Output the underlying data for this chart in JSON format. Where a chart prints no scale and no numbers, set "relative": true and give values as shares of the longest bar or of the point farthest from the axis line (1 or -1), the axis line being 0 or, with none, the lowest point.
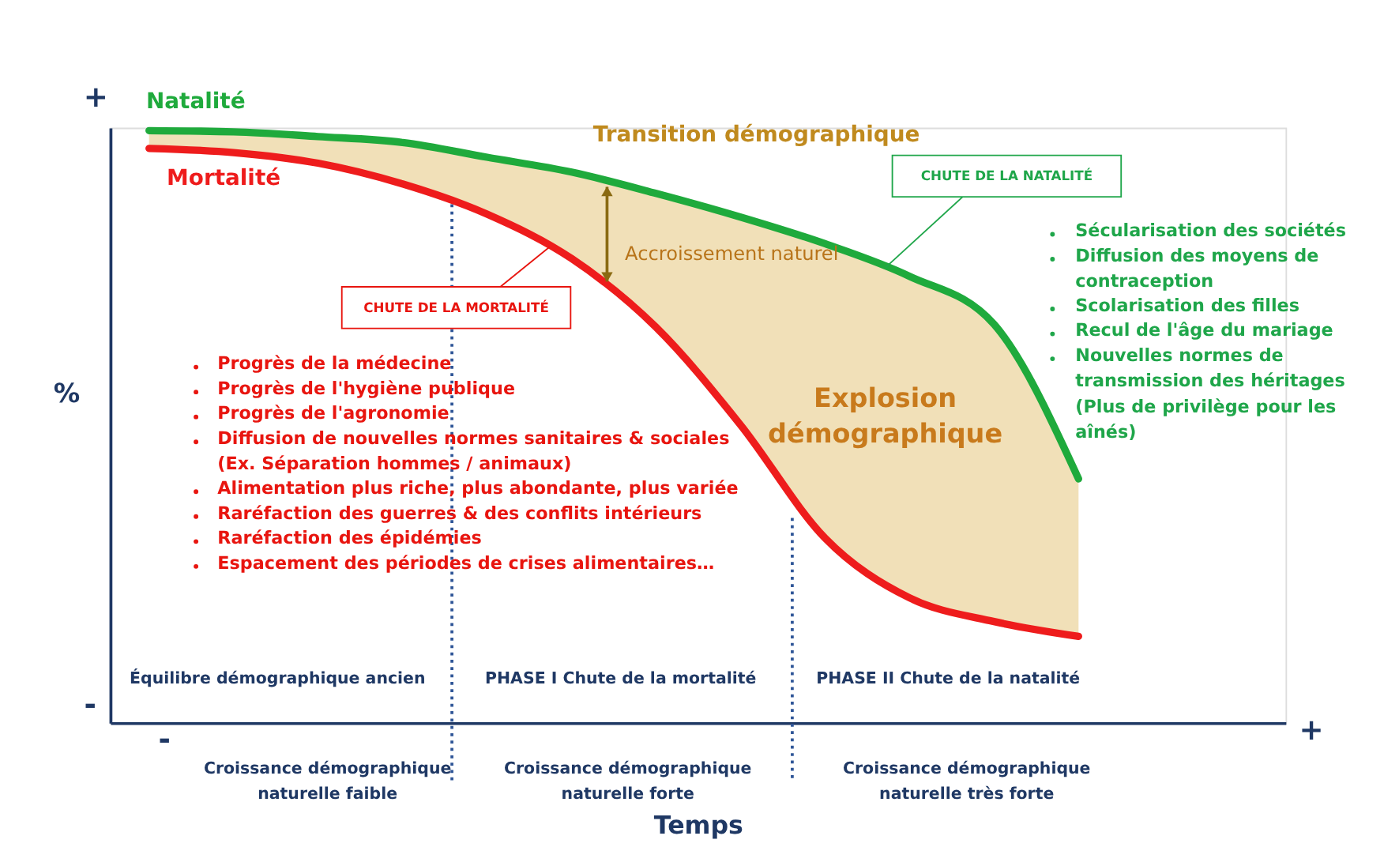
{
  "chart_data": {
    "type": "line",
    "xlabel": "Temps",
    "ylabel": "%",
    "grid": false,
    "relative": true,
    "categories": [
      null,
      null,
      null,
      null,
      null,
      null,
      null,
      null,
      null,
      null,
      null,
      null
    ],
    "series": [
      {
        "name": "Natalité",
        "color": "#1faa3c",
        "values": [
          1,
          0.998,
          0.99,
          0.98,
          0.955,
          0.93,
          0.894,
          0.854,
          0.809,
          0.754,
          0.673,
          0.412
        ],
        "lower": [
          0.97,
          0.963,
          0.945,
          0.91,
          0.859,
          0.784,
          0.668,
          0.503,
          0.312,
          0.211,
          0.171,
          0.146
        ],
        "upper": [
          1,
          0.998,
          0.99,
          0.98,
          0.955,
          0.93,
          0.894,
          0.854,
          0.809,
          0.754,
          0.673,
          0.412
        ]
      },
      {
        "name": "Mortalité",
        "color": "#ee1c1c",
        "values": [
          0.97,
          0.963,
          0.945,
          0.91,
          0.859,
          0.784,
          0.668,
          0.503,
          0.312,
          0.211,
          0.171,
          0.146
        ]
      }
    ],
    "annotations": [
      "Transition démographique",
      "Accroissement naturel",
      "Explosion\ndémographique",
      "CHUTE DE LA MORTALITÉ",
      "CHUTE DE LA NATALITÉ",
      "Progrès de la médecine",
      "Progrès de l'hygiène publique",
      "Progrès de l'agronomie",
      "Diffusion de nouvelles normes sanitaires & sociales\n(Ex. Séparation hommes / animaux)",
      "Alimentation plus riche, plus abondante, plus variée",
      "Raréfaction des guerres & des conflits intérieurs",
      "Raréfaction des épidémies",
      "Espacement des périodes de crises alimentaires…",
      "Sécularisation des sociétés",
      "Diffusion des moyens de\ncontraception",
      "Scolarisation des filles",
      "Recul de l'âge du mariage",
      "Nouvelles normes de\ntransmission des héritages\n(Plus de privilège pour les\naînés)",
      "Équilibre démographique ancien",
      "PHASE I Chute de la mortalité",
      "PHASE II Chute de la natalité",
      "Croissance démographique\nnaturelle faible",
      "Croissance démographique\nnaturelle forte",
      "Croissance démographique\nnaturelle très forte",
      "+",
      "-",
      "-",
      "+"
    ]
  }
}
